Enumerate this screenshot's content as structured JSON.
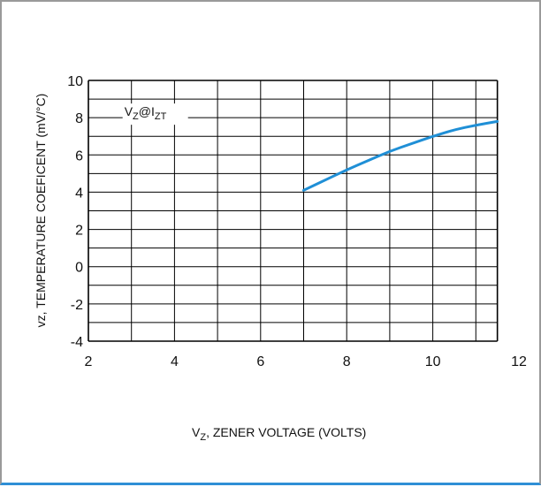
{
  "chart_data": {
    "type": "line",
    "title": "",
    "xlabel": {
      "prefix": "V",
      "sub": "Z",
      "rest": ", ZENER VOLTAGE (VOLTS)"
    },
    "ylabel": "vz, TEMPERATURE COEFICENT (mV/°C)",
    "xlim": [
      2,
      12
    ],
    "ylim": [
      -4,
      10
    ],
    "xticks": [
      2,
      4,
      6,
      8,
      10,
      12
    ],
    "yticks": [
      -4,
      -2,
      0,
      2,
      4,
      6,
      8,
      10
    ],
    "x_gridlines": [
      2,
      3,
      4,
      5,
      6,
      7,
      8,
      9,
      10,
      11,
      11.5
    ],
    "y_gridlines": [
      -4,
      -3,
      -2,
      -1,
      0,
      1,
      2,
      3,
      4,
      5,
      6,
      7,
      8,
      9,
      10
    ],
    "grid": true,
    "annotation": {
      "v": "V",
      "vsub": "Z",
      "at": "@I",
      "isub": "ZT"
    },
    "series": [
      {
        "color": "#1f8fd6",
        "x": [
          7.0,
          7.5,
          8.0,
          8.5,
          9.0,
          9.5,
          10.0,
          10.5,
          11.0,
          11.5
        ],
        "y": [
          4.1,
          4.65,
          5.2,
          5.7,
          6.2,
          6.6,
          7.0,
          7.35,
          7.6,
          7.8
        ]
      }
    ]
  }
}
